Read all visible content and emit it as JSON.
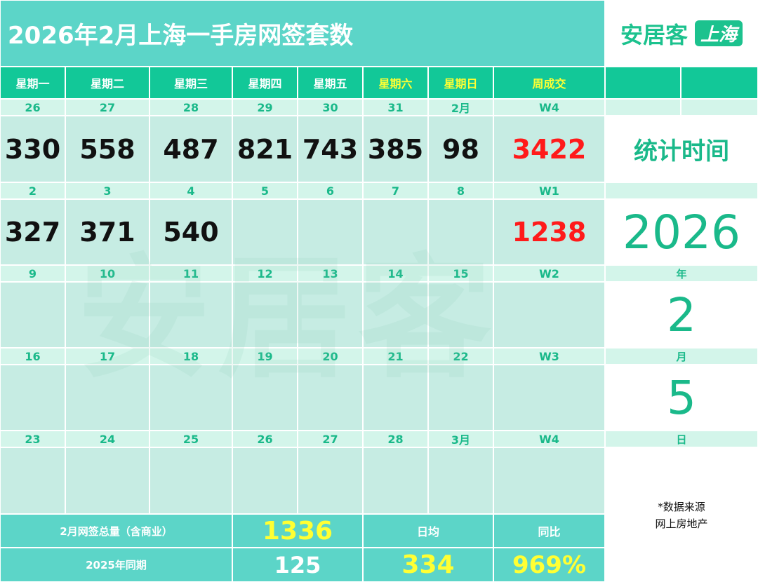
{
  "header": {
    "title": "2026年2月上海一手房网签套数",
    "brand": "安居客",
    "brand_tag": "上海"
  },
  "table": {
    "columns": [
      "星期一",
      "星期二",
      "星期三",
      "星期四",
      "星期五",
      "星期六",
      "星期日",
      "周成交"
    ],
    "weeks": [
      {
        "dates": [
          "26",
          "27",
          "28",
          "29",
          "30",
          "31",
          "2月",
          "W4"
        ],
        "values": [
          330,
          558,
          487,
          821,
          743,
          385,
          98,
          3422
        ]
      },
      {
        "dates": [
          "2",
          "3",
          "4",
          "5",
          "6",
          "7",
          "8",
          "W1"
        ],
        "values": [
          327,
          371,
          540,
          null,
          null,
          null,
          null,
          1238
        ]
      },
      {
        "dates": [
          "9",
          "10",
          "11",
          "12",
          "13",
          "14",
          "15",
          "W2"
        ],
        "values": [
          null,
          null,
          null,
          null,
          null,
          null,
          null,
          null
        ]
      },
      {
        "dates": [
          "16",
          "17",
          "18",
          "19",
          "20",
          "21",
          "22",
          "W3"
        ],
        "values": [
          null,
          null,
          null,
          null,
          null,
          null,
          null,
          null
        ]
      },
      {
        "dates": [
          "23",
          "24",
          "25",
          "26",
          "27",
          "28",
          "3月",
          "W4"
        ],
        "values": [
          null,
          null,
          null,
          null,
          null,
          null,
          null,
          null
        ]
      }
    ]
  },
  "side": {
    "label": "统计时间",
    "year": 2026,
    "year_unit": "年",
    "month": 2,
    "month_unit": "月",
    "day": 5,
    "day_unit": "日",
    "source": [
      "*数据来源",
      "网上房地产"
    ]
  },
  "summary": {
    "total_label": "2月网签总量（含商业）",
    "total": 1336,
    "avg_label": "日均",
    "yoy_label": "同比",
    "prev_label": "2025年同期",
    "prev_total": 125,
    "avg": 334,
    "yoy": "969%"
  },
  "watermark": "安居客"
}
